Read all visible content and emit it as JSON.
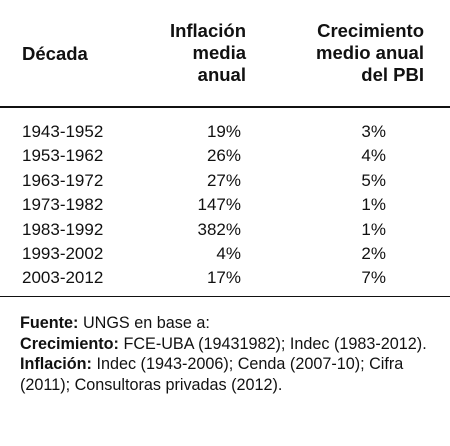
{
  "table": {
    "headers": {
      "decade": "Década",
      "inflation": [
        "Inflación",
        "media",
        "anual"
      ],
      "growth": [
        "Crecimiento",
        "medio anual",
        "del PBI"
      ]
    },
    "rows": [
      {
        "decade": "1943-1952",
        "inflation": "19%",
        "growth": "3%"
      },
      {
        "decade": "1953-1962",
        "inflation": "26%",
        "growth": "4%"
      },
      {
        "decade": "1963-1972",
        "inflation": "27%",
        "growth": "5%"
      },
      {
        "decade": "1973-1982",
        "inflation": "147%",
        "growth": "1%"
      },
      {
        "decade": "1983-1992",
        "inflation": "382%",
        "growth": "1%"
      },
      {
        "decade": "1993-2002",
        "inflation": "4%",
        "growth": "2%"
      },
      {
        "decade": "2003-2012",
        "inflation": "17%",
        "growth": "7%"
      }
    ]
  },
  "notes": {
    "source_label": "Fuente:",
    "source_text": " UNGS en base a:",
    "growth_label": "Crecimiento:",
    "growth_text": " FCE-UBA (19431982); Indec (1983-2012).",
    "inflation_label": "Inflación:",
    "inflation_text": " Indec (1943-2006); Cenda (2007-10); Cifra (2011); Consultoras privadas (2012)."
  }
}
